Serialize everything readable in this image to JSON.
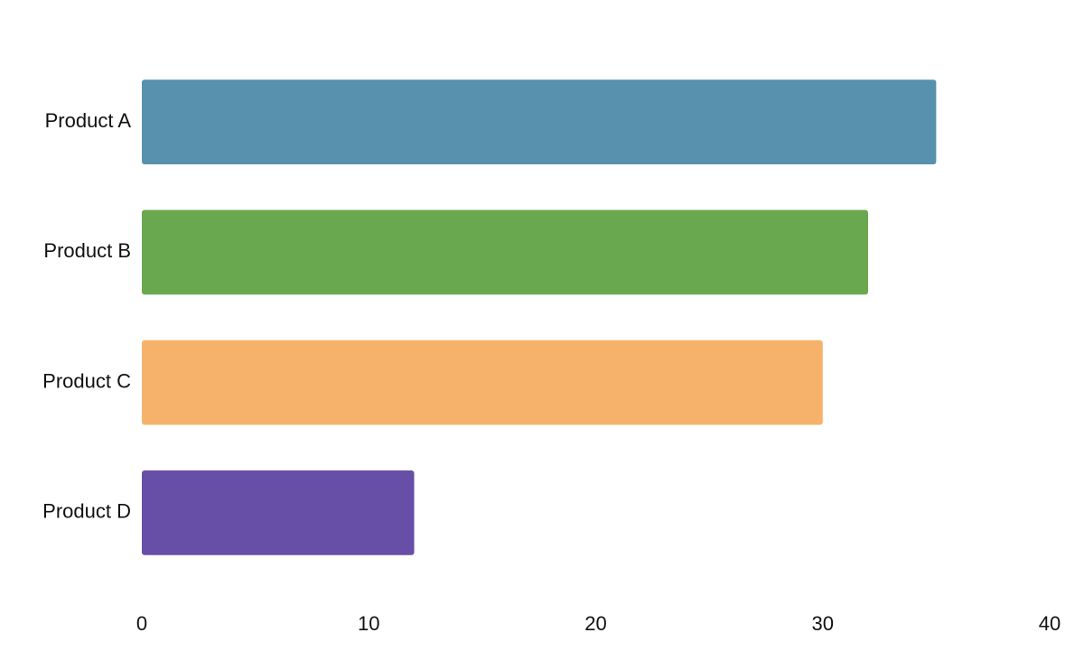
{
  "chart_data": {
    "type": "bar",
    "orientation": "horizontal",
    "categories": [
      "Product A",
      "Product B",
      "Product C",
      "Product D"
    ],
    "values": [
      35,
      32,
      30,
      12
    ],
    "colors": [
      "#5891ae",
      "#6aa84f",
      "#f6b26b",
      "#674ea7"
    ],
    "xlim": [
      0,
      40
    ],
    "xticks": [
      0,
      10,
      20,
      30,
      40
    ],
    "grid": false
  }
}
